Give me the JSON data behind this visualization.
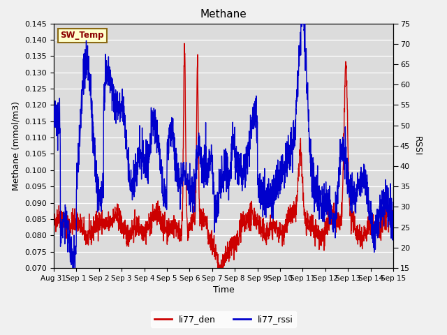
{
  "title": "Methane",
  "xlabel": "Time",
  "ylabel_left": "Methane (mmol/m3)",
  "ylabel_right": "RSSI",
  "ylim_left": [
    0.07,
    0.145
  ],
  "ylim_right": [
    15,
    75
  ],
  "yticks_left": [
    0.07,
    0.075,
    0.08,
    0.085,
    0.09,
    0.095,
    0.1,
    0.105,
    0.11,
    0.115,
    0.12,
    0.125,
    0.13,
    0.135,
    0.14,
    0.145
  ],
  "yticks_right": [
    15,
    20,
    25,
    30,
    35,
    40,
    45,
    50,
    55,
    60,
    65,
    70,
    75
  ],
  "xtick_labels": [
    "Aug 31",
    "Sep 1",
    "Sep 2",
    "Sep 3",
    "Sep 4",
    "Sep 5",
    "Sep 6",
    "Sep 7",
    "Sep 8",
    "Sep 9",
    "Sep 10",
    "Sep 11",
    "Sep 12",
    "Sep 13",
    "Sep 14",
    "Sep 15"
  ],
  "color_red": "#cc0000",
  "color_blue": "#0000cc",
  "legend_label_red": "li77_den",
  "legend_label_blue": "li77_rssi",
  "annotation_label": "SW_Temp",
  "annotation_color": "#8b0000",
  "annotation_bg": "#ffffcc",
  "annotation_border": "#8b6914",
  "plot_bg": "#dcdcdc",
  "fig_bg": "#f0f0f0",
  "grid_color": "#ffffff",
  "line_width": 1.0,
  "title_fontsize": 11,
  "label_fontsize": 9,
  "tick_fontsize": 8,
  "legend_fontsize": 9
}
